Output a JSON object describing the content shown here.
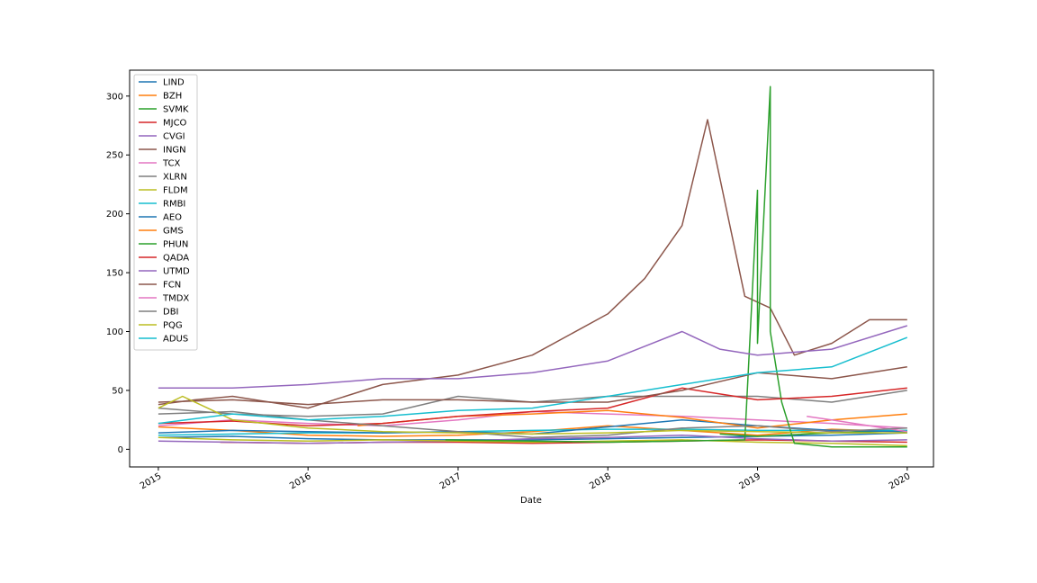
{
  "chart_data": {
    "type": "line",
    "title": "",
    "xlabel": "Date",
    "ylabel": "",
    "x_ticks": [
      "2015",
      "2016",
      "2017",
      "2018",
      "2019",
      "2020"
    ],
    "y_ticks": [
      0,
      50,
      100,
      150,
      200,
      250,
      300
    ],
    "xlim": [
      "2014-10-23",
      "2020-03-05"
    ],
    "ylim": [
      -15,
      322
    ],
    "legend_placement": "upper-left",
    "grid": false,
    "series": [
      {
        "name": "LIND",
        "color": "#1f77b4",
        "x": [
          "2015-01",
          "2015-07",
          "2016-01",
          "2016-07",
          "2017-01",
          "2017-07",
          "2018-01",
          "2018-07",
          "2019-01",
          "2019-07",
          "2020-01"
        ],
        "values": [
          10,
          11,
          9,
          8,
          8,
          8,
          9,
          10,
          11,
          12,
          14
        ]
      },
      {
        "name": "BZH",
        "color": "#ff7f0e",
        "x": [
          "2015-01",
          "2015-07",
          "2016-01",
          "2016-07",
          "2017-01",
          "2017-07",
          "2018-01",
          "2018-07",
          "2019-01",
          "2019-07",
          "2020-01"
        ],
        "values": [
          19,
          16,
          12,
          11,
          12,
          15,
          20,
          16,
          12,
          17,
          15
        ]
      },
      {
        "name": "SVMK",
        "color": "#2ca02c",
        "x": [
          "2018-10",
          "2019-01",
          "2019-07",
          "2020-01"
        ],
        "values": [
          13,
          11,
          14,
          16
        ]
      },
      {
        "name": "MJCO",
        "color": "#d62728",
        "x": [
          "2015-06",
          "2016-01",
          "2016-07",
          "2017-01",
          "2017-07",
          "2018-01",
          "2018-07",
          "2019-01",
          "2019-07",
          "2020-01"
        ],
        "values": [
          6,
          5,
          6,
          6,
          5,
          6,
          7,
          8,
          7,
          6
        ]
      },
      {
        "name": "CVGI",
        "color": "#9467bd",
        "x": [
          "2015-01",
          "2015-07",
          "2016-01",
          "2016-07",
          "2017-01",
          "2017-07",
          "2018-01",
          "2018-07",
          "2019-01",
          "2019-07",
          "2020-01"
        ],
        "values": [
          7,
          6,
          5,
          6,
          7,
          9,
          10,
          12,
          9,
          7,
          8
        ]
      },
      {
        "name": "INGN",
        "color": "#8c564b",
        "x": [
          "2015-01",
          "2015-04",
          "2015-07",
          "2016-01",
          "2016-07",
          "2017-01",
          "2017-07",
          "2018-01",
          "2018-04",
          "2018-07",
          "2018-09",
          "2018-12",
          "2019-02",
          "2019-04",
          "2019-07",
          "2019-10",
          "2020-01"
        ],
        "values": [
          38,
          42,
          45,
          35,
          55,
          63,
          80,
          115,
          145,
          190,
          280,
          130,
          120,
          80,
          90,
          110,
          110
        ]
      },
      {
        "name": "TCX",
        "color": "#e377c2",
        "x": [
          "2015-01",
          "2015-07",
          "2016-01",
          "2016-07",
          "2017-01",
          "2017-07",
          "2018-01",
          "2018-07",
          "2019-01",
          "2019-07",
          "2020-01"
        ],
        "values": [
          20,
          25,
          22,
          20,
          25,
          32,
          30,
          28,
          25,
          22,
          18
        ]
      },
      {
        "name": "XLRN",
        "color": "#7f7f7f",
        "x": [
          "2015-01",
          "2015-07",
          "2016-01",
          "2016-07",
          "2017-01",
          "2017-07",
          "2018-01",
          "2018-07",
          "2019-01",
          "2019-07",
          "2020-01"
        ],
        "values": [
          35,
          30,
          28,
          30,
          45,
          40,
          45,
          45,
          45,
          40,
          50
        ]
      },
      {
        "name": "FLDM",
        "color": "#bcbd22",
        "x": [
          "2015-01",
          "2015-07",
          "2016-01",
          "2016-07",
          "2017-01",
          "2017-07",
          "2018-01",
          "2018-07",
          "2019-01",
          "2019-07",
          "2020-01"
        ],
        "values": [
          10,
          8,
          7,
          8,
          7,
          6,
          7,
          8,
          6,
          5,
          3
        ]
      },
      {
        "name": "RMBI",
        "color": "#17becf",
        "x": [
          "2015-01",
          "2015-07",
          "2016-01",
          "2016-07",
          "2017-01",
          "2017-07",
          "2018-01",
          "2018-07",
          "2019-01",
          "2019-07",
          "2020-01"
        ],
        "values": [
          12,
          13,
          14,
          14,
          15,
          16,
          17,
          17,
          16,
          16,
          16
        ]
      },
      {
        "name": "AEO",
        "color": "#1f77b4",
        "x": [
          "2015-01",
          "2015-07",
          "2016-01",
          "2016-07",
          "2017-01",
          "2017-07",
          "2018-01",
          "2018-07",
          "2019-01",
          "2019-07",
          "2020-01"
        ],
        "values": [
          14,
          16,
          15,
          14,
          15,
          13,
          19,
          25,
          20,
          16,
          15
        ]
      },
      {
        "name": "GMS",
        "color": "#ff7f0e",
        "x": [
          "2016-05",
          "2016-07",
          "2017-01",
          "2017-07",
          "2018-01",
          "2018-07",
          "2019-01",
          "2019-07",
          "2020-01"
        ],
        "values": [
          20,
          22,
          28,
          30,
          33,
          27,
          18,
          25,
          30
        ]
      },
      {
        "name": "PHUN",
        "color": "#2ca02c",
        "x": [
          "2016-12",
          "2017-07",
          "2018-01",
          "2018-07",
          "2018-12",
          "2019-01",
          "2019-01",
          "2019-02",
          "2019-02",
          "2019-03",
          "2019-04",
          "2019-07",
          "2020-01"
        ],
        "values": [
          8,
          7,
          6,
          7,
          8,
          220,
          90,
          308,
          100,
          40,
          5,
          2,
          2
        ]
      },
      {
        "name": "QADA",
        "color": "#d62728",
        "x": [
          "2015-01",
          "2015-07",
          "2016-01",
          "2016-07",
          "2017-01",
          "2017-07",
          "2018-01",
          "2018-07",
          "2019-01",
          "2019-07",
          "2020-01"
        ],
        "values": [
          22,
          24,
          20,
          22,
          28,
          32,
          35,
          52,
          42,
          45,
          52
        ]
      },
      {
        "name": "UTMD",
        "color": "#9467bd",
        "x": [
          "2015-01",
          "2015-07",
          "2016-01",
          "2016-07",
          "2017-01",
          "2017-07",
          "2018-01",
          "2018-07",
          "2018-10",
          "2019-01",
          "2019-07",
          "2020-01"
        ],
        "values": [
          52,
          52,
          55,
          60,
          60,
          65,
          75,
          100,
          85,
          80,
          85,
          105
        ]
      },
      {
        "name": "FCN",
        "color": "#8c564b",
        "x": [
          "2015-01",
          "2015-07",
          "2016-01",
          "2016-07",
          "2017-01",
          "2017-07",
          "2018-01",
          "2018-07",
          "2019-01",
          "2019-07",
          "2020-01"
        ],
        "values": [
          40,
          42,
          38,
          42,
          42,
          40,
          40,
          50,
          65,
          60,
          70
        ]
      },
      {
        "name": "TMDX",
        "color": "#e377c2",
        "x": [
          "2019-05",
          "2019-07",
          "2019-10",
          "2020-01"
        ],
        "values": [
          28,
          25,
          20,
          15
        ]
      },
      {
        "name": "DBI",
        "color": "#7f7f7f",
        "x": [
          "2015-01",
          "2015-07",
          "2016-01",
          "2016-07",
          "2017-01",
          "2017-07",
          "2018-01",
          "2018-07",
          "2019-01",
          "2019-07",
          "2020-01"
        ],
        "values": [
          30,
          32,
          25,
          20,
          15,
          10,
          12,
          18,
          20,
          15,
          18
        ]
      },
      {
        "name": "PQG",
        "color": "#bcbd22",
        "x": [
          "2015-01",
          "2015-03",
          "2015-05",
          "2015-07",
          "2016-01",
          "2016-07",
          "2017-01",
          "2017-07",
          "2018-01",
          "2018-07",
          "2019-01",
          "2019-07",
          "2020-01"
        ],
        "values": [
          35,
          45,
          35,
          25,
          18,
          15,
          14,
          13,
          14,
          16,
          15,
          14,
          14
        ]
      },
      {
        "name": "ADUS",
        "color": "#17becf",
        "x": [
          "2015-01",
          "2015-07",
          "2016-01",
          "2016-07",
          "2017-01",
          "2017-07",
          "2018-01",
          "2018-07",
          "2019-01",
          "2019-07",
          "2020-01"
        ],
        "values": [
          22,
          30,
          25,
          28,
          33,
          35,
          45,
          55,
          65,
          70,
          95
        ]
      }
    ]
  }
}
